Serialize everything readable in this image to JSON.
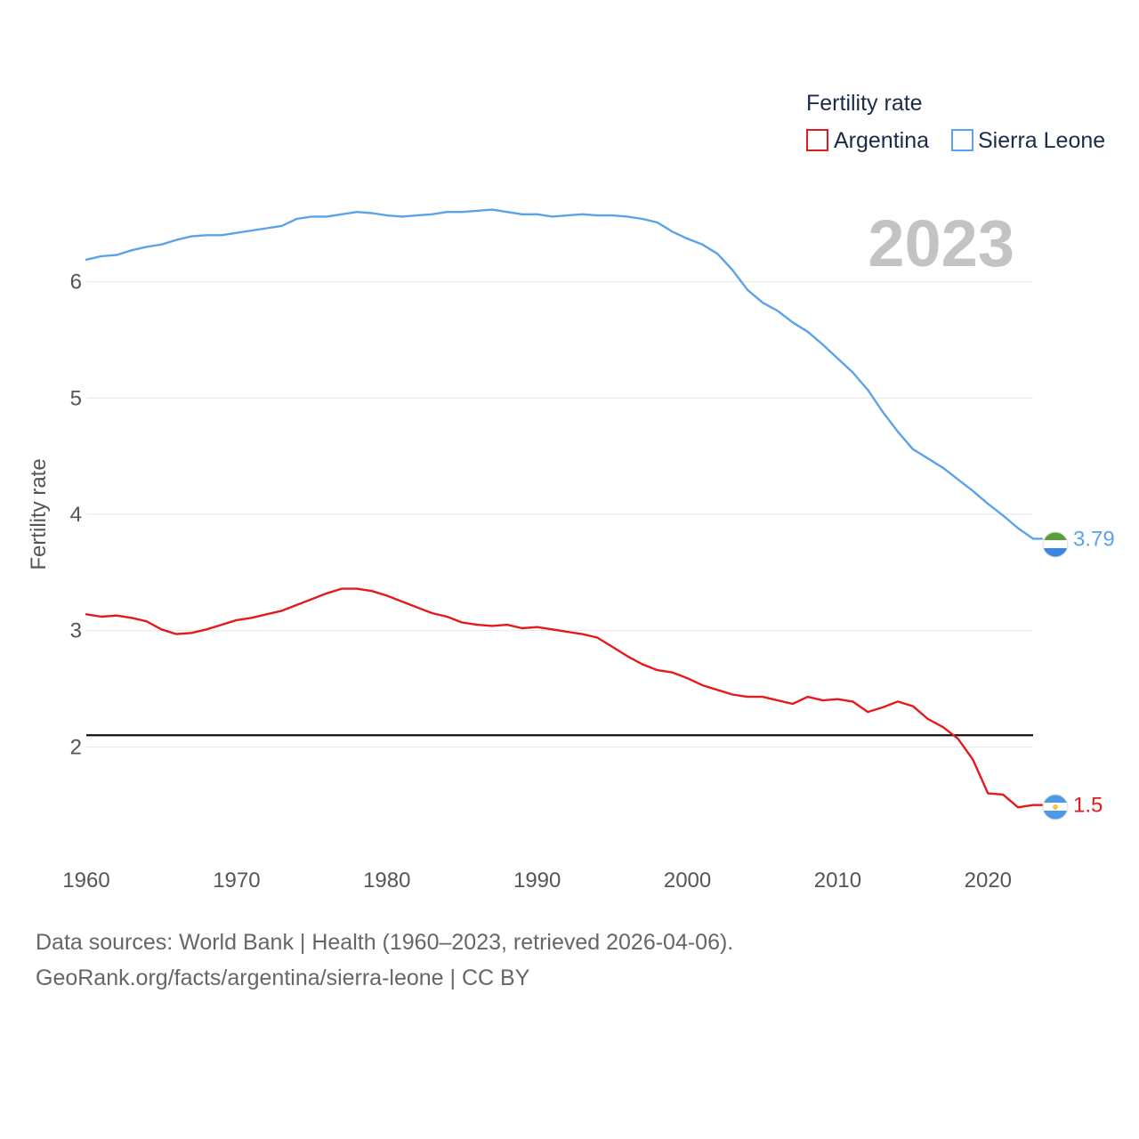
{
  "chart_data": {
    "type": "line",
    "title": "Fertility rate",
    "ylabel": "Fertility rate",
    "xlabel": "",
    "year_label": "2023",
    "xlim": [
      1960,
      2023
    ],
    "ylim": [
      1.0,
      6.9
    ],
    "x_ticks": [
      1960,
      1970,
      1980,
      1990,
      2000,
      2010,
      2020
    ],
    "y_ticks": [
      2,
      3,
      4,
      5,
      6
    ],
    "reference_line": 2.1,
    "legend_title": "Fertility rate",
    "x": [
      1960,
      1961,
      1962,
      1963,
      1964,
      1965,
      1966,
      1967,
      1968,
      1969,
      1970,
      1971,
      1972,
      1973,
      1974,
      1975,
      1976,
      1977,
      1978,
      1979,
      1980,
      1981,
      1982,
      1983,
      1984,
      1985,
      1986,
      1987,
      1988,
      1989,
      1990,
      1991,
      1992,
      1993,
      1994,
      1995,
      1996,
      1997,
      1998,
      1999,
      2000,
      2001,
      2002,
      2003,
      2004,
      2005,
      2006,
      2007,
      2008,
      2009,
      2010,
      2011,
      2012,
      2013,
      2014,
      2015,
      2016,
      2017,
      2018,
      2019,
      2020,
      2021,
      2022,
      2023
    ],
    "series": [
      {
        "name": "Argentina",
        "color": "#e31a1c",
        "end_label": "1.5",
        "values": [
          3.14,
          3.12,
          3.13,
          3.11,
          3.08,
          3.01,
          2.97,
          2.98,
          3.01,
          3.05,
          3.09,
          3.11,
          3.14,
          3.17,
          3.22,
          3.27,
          3.32,
          3.36,
          3.36,
          3.34,
          3.3,
          3.25,
          3.2,
          3.15,
          3.12,
          3.07,
          3.05,
          3.04,
          3.05,
          3.02,
          3.03,
          3.01,
          2.99,
          2.97,
          2.94,
          2.86,
          2.78,
          2.71,
          2.66,
          2.64,
          2.59,
          2.53,
          2.49,
          2.45,
          2.43,
          2.43,
          2.4,
          2.37,
          2.43,
          2.4,
          2.41,
          2.39,
          2.3,
          2.34,
          2.39,
          2.35,
          2.24,
          2.17,
          2.07,
          1.89,
          1.6,
          1.59,
          1.48,
          1.5
        ]
      },
      {
        "name": "Sierra Leone",
        "color": "#5ba3e8",
        "end_label": "3.79",
        "values": [
          6.19,
          6.22,
          6.23,
          6.27,
          6.3,
          6.32,
          6.36,
          6.39,
          6.4,
          6.4,
          6.42,
          6.44,
          6.46,
          6.48,
          6.54,
          6.56,
          6.56,
          6.58,
          6.6,
          6.59,
          6.57,
          6.56,
          6.57,
          6.58,
          6.6,
          6.6,
          6.61,
          6.62,
          6.6,
          6.58,
          6.58,
          6.56,
          6.57,
          6.58,
          6.57,
          6.57,
          6.56,
          6.54,
          6.51,
          6.43,
          6.37,
          6.32,
          6.24,
          6.1,
          5.93,
          5.82,
          5.75,
          5.65,
          5.57,
          5.46,
          5.34,
          5.22,
          5.07,
          4.88,
          4.71,
          4.56,
          4.48,
          4.4,
          4.3,
          4.2,
          4.09,
          3.99,
          3.88,
          3.79
        ]
      }
    ]
  },
  "footer": {
    "line1": "Data sources: World Bank | Health (1960–2023, retrieved 2026-04-06).",
    "line2": "GeoRank.org/facts/argentina/sierra-leone | CC BY"
  }
}
